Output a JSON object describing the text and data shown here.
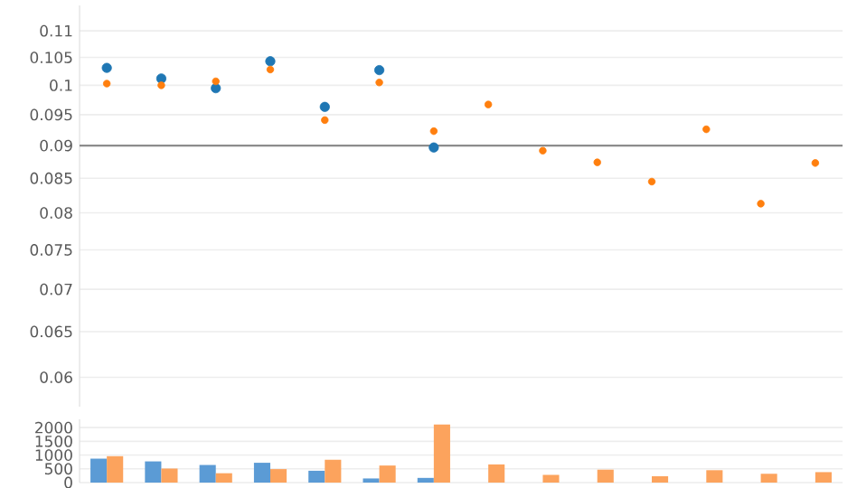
{
  "chart_data": [
    {
      "type": "scatter",
      "categories": [
        null,
        null,
        null,
        null,
        null,
        null,
        null,
        null,
        null,
        null,
        null,
        null,
        null,
        null
      ],
      "log": "y",
      "ylim": [
        0.057,
        0.115
      ],
      "yticks": [
        0.06,
        0.065,
        0.07,
        0.075,
        0.08,
        0.085,
        0.09,
        0.095,
        0.1,
        0.105,
        0.11
      ],
      "grid": "y",
      "tick_labels": "y",
      "marker": "circle",
      "ref_lines": [
        {
          "axis": "y",
          "value": 0.09,
          "color": "#8c8c8c"
        }
      ],
      "series": [
        {
          "color": "#1f77b4",
          "values": [
            0.1031,
            0.1012,
            0.0995,
            0.1043,
            0.0963,
            0.1027,
            0.0897,
            null,
            null,
            null,
            null,
            null,
            null,
            null
          ]
        },
        {
          "color": "#ff7f0e",
          "values": [
            0.1003,
            0.1,
            0.1007,
            0.1028,
            0.0941,
            0.1005,
            0.0923,
            0.0967,
            0.0892,
            0.0874,
            0.0845,
            0.0926,
            0.0813,
            0.0873
          ]
        }
      ]
    },
    {
      "type": "bar",
      "categories": [
        null,
        null,
        null,
        null,
        null,
        null,
        null,
        null,
        null,
        null,
        null,
        null,
        null,
        null
      ],
      "ylim": [
        0,
        2300
      ],
      "yticks": [
        0,
        500,
        1000,
        1500,
        2000
      ],
      "grid": "y",
      "tick_labels": "y",
      "series": [
        {
          "color": "#5b9bd5",
          "values": [
            870,
            770,
            640,
            720,
            430,
            150,
            170,
            null,
            null,
            null,
            null,
            null,
            null,
            null
          ]
        },
        {
          "color": "#fca35d",
          "values": [
            960,
            510,
            340,
            490,
            830,
            620,
            2110,
            660,
            280,
            470,
            230,
            450,
            320,
            380
          ]
        }
      ]
    }
  ]
}
